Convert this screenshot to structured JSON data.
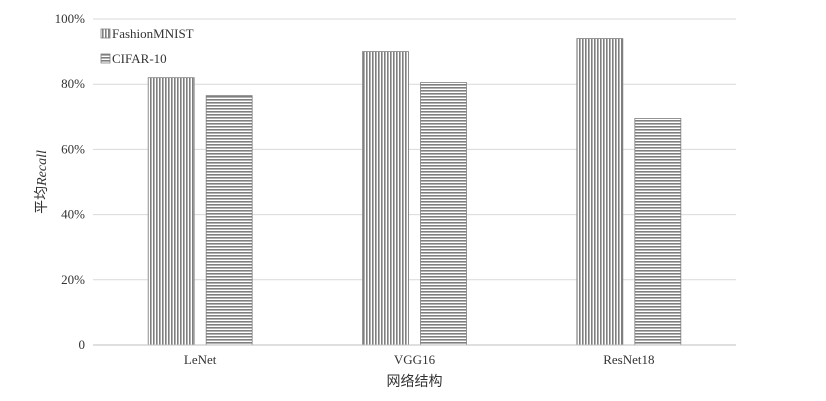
{
  "chart_data": {
    "type": "bar",
    "categories": [
      "LeNet",
      "VGG16",
      "ResNet18"
    ],
    "series": [
      {
        "name": "FashionMNIST",
        "values": [
          82,
          90,
          94
        ],
        "pattern": "vertical-stripes"
      },
      {
        "name": "CIFAR-10",
        "values": [
          76.5,
          80.5,
          69.5
        ],
        "pattern": "horizontal-stripes"
      }
    ],
    "xlabel": "网络结构",
    "ylabel_prefix": "平均",
    "ylabel_italic": "Recall",
    "ylim": [
      0,
      100
    ],
    "yticks": [
      {
        "value": 0,
        "label": "0"
      },
      {
        "value": 20,
        "label": "20%"
      },
      {
        "value": 40,
        "label": "40%"
      },
      {
        "value": 60,
        "label": "60%"
      },
      {
        "value": 80,
        "label": "80%"
      },
      {
        "value": 100,
        "label": "100%"
      }
    ],
    "grid": true,
    "legend_position": "top-left",
    "colors": {
      "stripe": "#7f7f7f",
      "grid": "#d9d9d9",
      "axis": "#bfbfbf",
      "text": "#333333"
    }
  }
}
